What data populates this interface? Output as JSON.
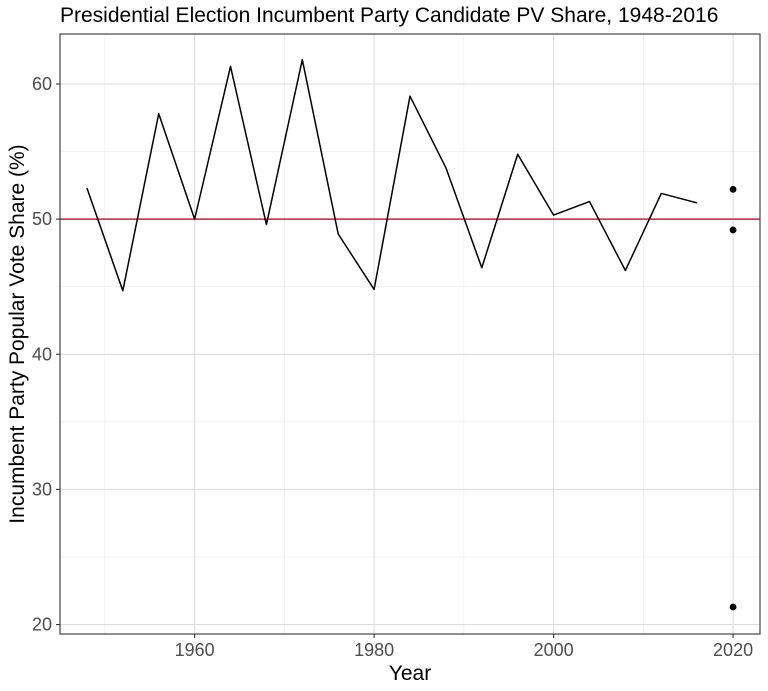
{
  "chart_data": {
    "type": "line",
    "title": "Presidential Election Incumbent Party Candidate PV Share, 1948-2016",
    "xlabel": "Year",
    "ylabel": "Incumbent Party Popular Vote Share (%)",
    "xlim": [
      1945,
      2023
    ],
    "ylim": [
      19.3,
      63.7
    ],
    "x_ticks": [
      1960,
      1980,
      2000,
      2020
    ],
    "x_tick_labels": [
      "1960",
      "1980",
      "2000",
      "2020"
    ],
    "y_ticks": [
      20,
      30,
      40,
      50,
      60
    ],
    "y_tick_labels": [
      "20",
      "30",
      "40",
      "50",
      "60"
    ],
    "grid": true,
    "legend": "none",
    "series": [
      {
        "type": "line",
        "color": "#000000",
        "x": [
          1948,
          1952,
          1956,
          1960,
          1964,
          1968,
          1972,
          1976,
          1980,
          1984,
          1988,
          1992,
          1996,
          2000,
          2004,
          2008,
          2012,
          2016
        ],
        "y": [
          52.3,
          44.7,
          57.8,
          50.0,
          61.3,
          49.6,
          61.8,
          48.9,
          44.8,
          59.1,
          53.8,
          46.4,
          54.8,
          50.3,
          51.3,
          46.2,
          51.9,
          51.2
        ]
      },
      {
        "type": "scatter",
        "color": "#000000",
        "x": [
          2020,
          2020,
          2020
        ],
        "y": [
          52.2,
          49.2,
          21.3
        ]
      }
    ],
    "reference_lines": [
      {
        "orientation": "horizontal",
        "value": 50,
        "color": "#dc143c"
      }
    ]
  }
}
